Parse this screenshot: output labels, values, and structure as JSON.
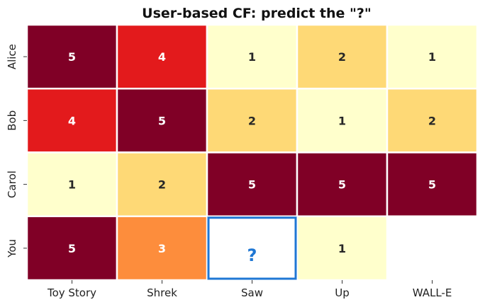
{
  "chart_data": {
    "type": "heatmap",
    "title": "User-based CF: predict the \"?\"",
    "xlabel": "",
    "ylabel": "",
    "x_categories": [
      "Toy Story",
      "Shrek",
      "Saw",
      "Up",
      "WALL-E"
    ],
    "y_categories": [
      "Alice",
      "Bob",
      "Carol",
      "You"
    ],
    "values": [
      [
        5,
        4,
        1,
        2,
        1
      ],
      [
        4,
        5,
        2,
        1,
        2
      ],
      [
        1,
        2,
        5,
        5,
        5
      ],
      [
        5,
        3,
        null,
        1,
        null
      ]
    ],
    "value_range": [
      1,
      5
    ],
    "colorbar": false,
    "colormap": {
      "1": "#ffffcc",
      "2": "#fed976",
      "3": "#fd8d3c",
      "4": "#e31a1c",
      "5": "#800026"
    },
    "cell_separator_color": "#ffffff",
    "annotation_colors": {
      "dark_cell": "#ffffff",
      "light_cell": "#262626"
    },
    "target_cell": {
      "row": "You",
      "column": "Saw",
      "label": "?",
      "color": "#1f77d4"
    }
  }
}
